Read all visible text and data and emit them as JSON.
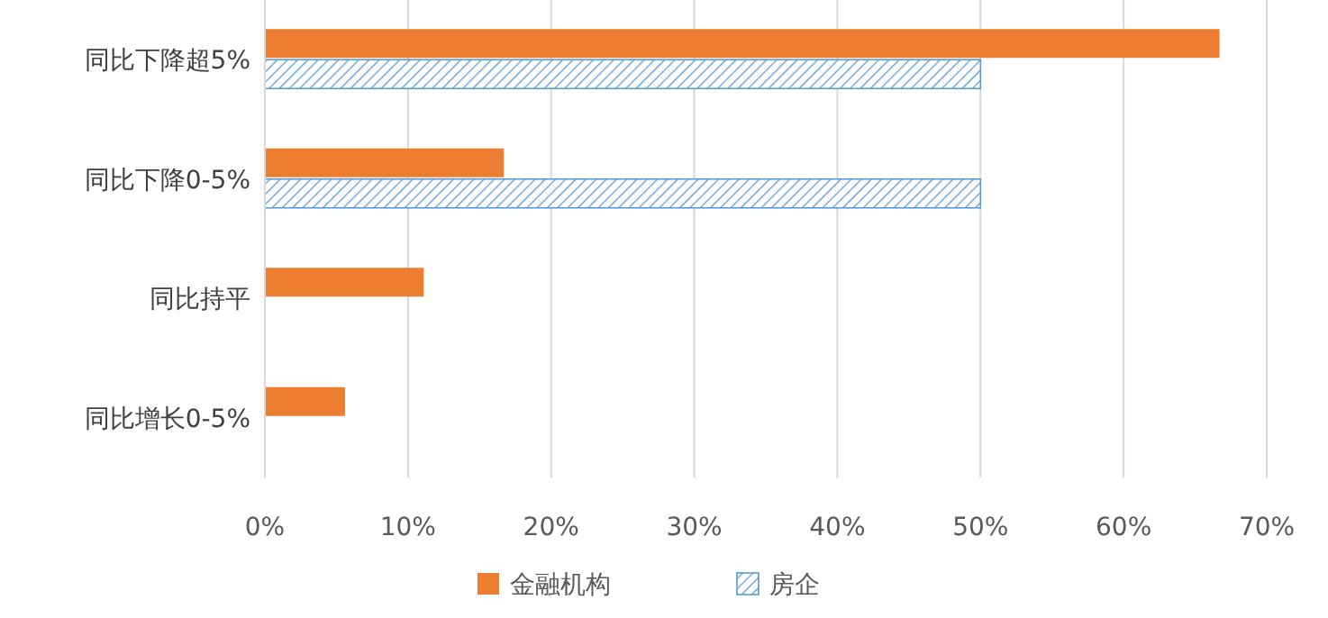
{
  "chart_data": {
    "type": "bar",
    "orientation": "horizontal",
    "categories": [
      "同比下降超5%",
      "同比下降0-5%",
      "同比持平",
      "同比增长0-5%"
    ],
    "series": [
      {
        "name": "金融机构",
        "color": "#ed7d31",
        "values": [
          66.7,
          16.7,
          11.1,
          5.6
        ]
      },
      {
        "name": "房企",
        "color": "#5b9bd5",
        "values": [
          50,
          50,
          null,
          null
        ]
      }
    ],
    "xlim": [
      0,
      70
    ],
    "xticks": [
      {
        "value": 0,
        "label": "0%"
      },
      {
        "value": 10,
        "label": "10%"
      },
      {
        "value": 20,
        "label": "20%"
      },
      {
        "value": 30,
        "label": "30%"
      },
      {
        "value": 40,
        "label": "40%"
      },
      {
        "value": 50,
        "label": "50%"
      },
      {
        "value": 60,
        "label": "60%"
      },
      {
        "value": 70,
        "label": "70%"
      }
    ],
    "grid": "x",
    "legend": "bottom"
  }
}
